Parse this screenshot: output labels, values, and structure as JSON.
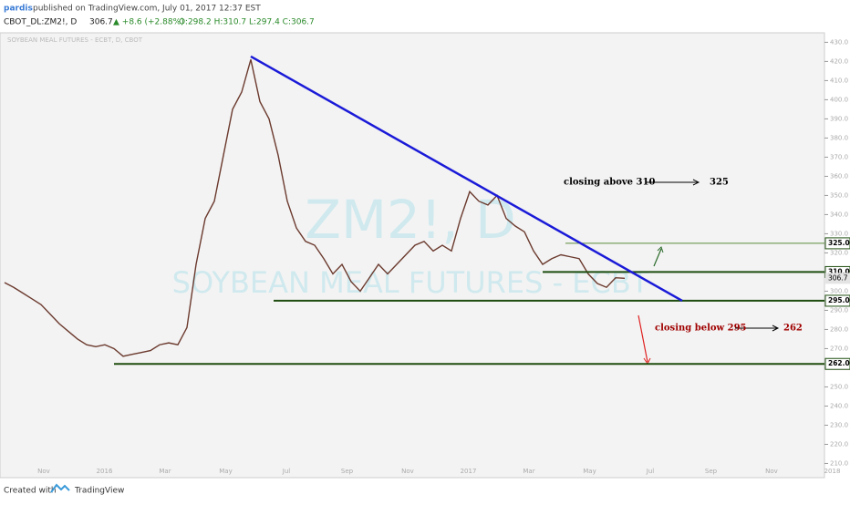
{
  "header": {
    "author": "pardis",
    "published": "published on TradingView.com, July 01, 2017 12:37 EST",
    "symbol": "CBOT_DL:ZM2!, D",
    "last": "306.7",
    "change": "▲ +8.6 (+2.88%)",
    "ohlc": "O:298.2 H:310.7 L:297.4 C:306.7"
  },
  "footer": {
    "created": "Created with",
    "brand": "TradingView"
  },
  "chart_data": {
    "type": "line",
    "legend": "SOYBEAN MEAL FUTURES - ECBT, D, CBOT",
    "watermark": "ZM2!, D",
    "watermark_sub": "SOYBEAN MEAL FUTURES - ECBT",
    "color": "#6b3a2e",
    "values": [
      304.5,
      302,
      299,
      296,
      293,
      288,
      283,
      279,
      275,
      272,
      271,
      272,
      270,
      266,
      267,
      268,
      269,
      272,
      273,
      272,
      281,
      314,
      338,
      347,
      371,
      395,
      404,
      421,
      399,
      390,
      371,
      347,
      333,
      326,
      324,
      317,
      309,
      314,
      305,
      300,
      307,
      314,
      309,
      314,
      319,
      324,
      326,
      321,
      324,
      321,
      338,
      352,
      347,
      345,
      350,
      338,
      334,
      331,
      321,
      314,
      317,
      319,
      318,
      317,
      309,
      304,
      302,
      307,
      306.7
    ],
    "x_labels": [
      "Nov",
      "2016",
      "Mar",
      "May",
      "Jul",
      "Sep",
      "Nov",
      "2017",
      "Mar",
      "May",
      "Jul",
      "Sep",
      "Nov",
      "2018"
    ],
    "ylim": [
      204.5,
      434
    ],
    "yticks": [
      {
        "value": 210,
        "label": "210.0"
      },
      {
        "value": 220,
        "label": "220.0"
      },
      {
        "value": 230,
        "label": "230.0"
      },
      {
        "value": 240,
        "label": "240.0"
      },
      {
        "value": 250,
        "label": "250.0"
      },
      {
        "value": 260,
        "label": "260.0"
      },
      {
        "value": 270,
        "label": "270.0"
      },
      {
        "value": 280,
        "label": "280.0"
      },
      {
        "value": 290,
        "label": "290.0"
      },
      {
        "value": 300,
        "label": "300.0"
      },
      {
        "value": 310,
        "label": "310.0"
      },
      {
        "value": 320,
        "label": "320.0"
      },
      {
        "value": 330,
        "label": "330.0"
      },
      {
        "value": 340,
        "label": "340.0"
      },
      {
        "value": 350,
        "label": "350.0"
      },
      {
        "value": 360,
        "label": "360.0"
      },
      {
        "value": 370,
        "label": "370.0"
      },
      {
        "value": 380,
        "label": "380.0"
      },
      {
        "value": 390,
        "label": "390.0"
      },
      {
        "value": 400,
        "label": "400.0"
      },
      {
        "value": 410,
        "label": "410.0"
      },
      {
        "value": 420,
        "label": "420.0"
      },
      {
        "value": 430,
        "label": "430.0"
      }
    ],
    "levels": [
      {
        "value": 325,
        "label": "325.0"
      },
      {
        "value": 310,
        "label": "310.0"
      },
      {
        "value": 295,
        "label": "295.0"
      },
      {
        "value": 262,
        "label": "262.0"
      }
    ],
    "last_label": {
      "value": 306.7,
      "label": "306.7"
    },
    "trendline": {
      "start": 422.6,
      "end": 295
    },
    "annotations": [
      "closing above 310",
      "325",
      "closing below 295",
      "262"
    ]
  }
}
